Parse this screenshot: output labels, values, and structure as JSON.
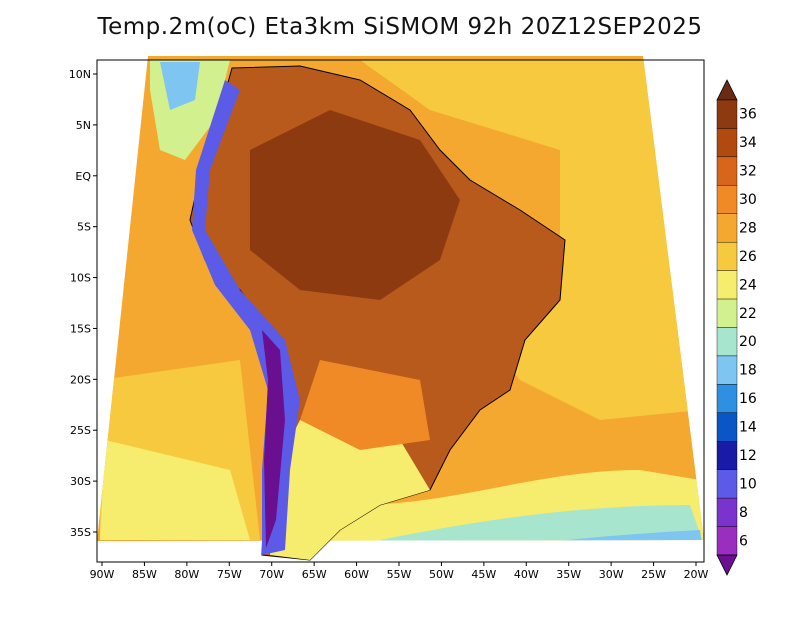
{
  "title": "Temp.2m(oC) Eta3km SiSMOM 92h 20Z12SEP2025",
  "x_ticks": [
    "90W",
    "85W",
    "80W",
    "75W",
    "70W",
    "65W",
    "60W",
    "55W",
    "50W",
    "45W",
    "40W",
    "35W",
    "30W",
    "25W",
    "20W"
  ],
  "y_ticks": [
    "10N",
    "5N",
    "EQ",
    "5S",
    "10S",
    "15S",
    "20S",
    "25S",
    "30S",
    "35S"
  ],
  "colorbar": {
    "labels": [
      "36",
      "34",
      "32",
      "30",
      "28",
      "26",
      "24",
      "22",
      "20",
      "18",
      "16",
      "14",
      "12",
      "10",
      "8",
      "6"
    ],
    "colors": [
      "#6b2a12",
      "#8e3a10",
      "#b04a0f",
      "#d8661a",
      "#ef8a26",
      "#f5a830",
      "#f7c93e",
      "#f6ec6e",
      "#d2f08e",
      "#a7e5cf",
      "#7fc5f1",
      "#2f8fe3",
      "#0b56c7",
      "#1a1aa8",
      "#5b5be8",
      "#7a33cc",
      "#9a2fbf",
      "#6a0f8f"
    ]
  },
  "colors": {
    "ocean_warm": "#f6ad34",
    "ocean_cool": "#f7cf4a",
    "land_hot": "#b85a1b",
    "land_very_hot": "#8e3a10"
  }
}
